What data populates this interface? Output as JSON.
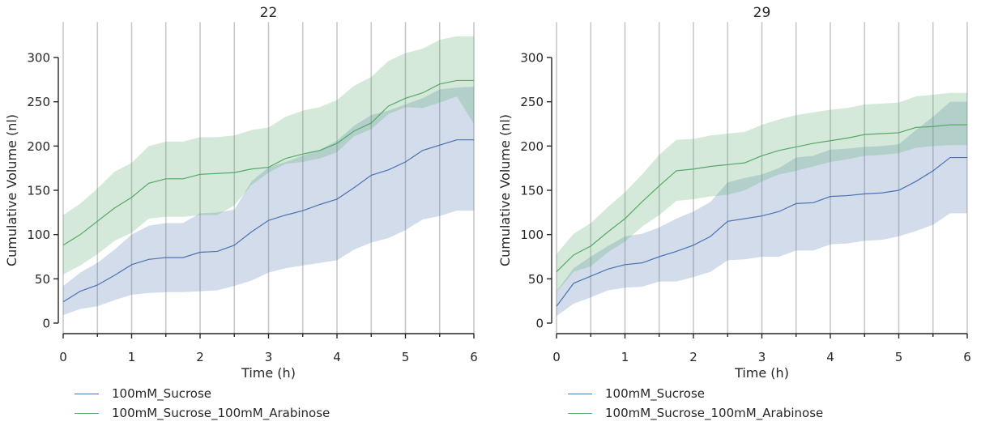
{
  "chart_data": [
    {
      "type": "line",
      "title": "22",
      "xlabel": "Time (h)",
      "ylabel": "Cumulative Volume (nl)",
      "xlim": [
        0,
        6
      ],
      "ylim": [
        -12,
        340
      ],
      "xticks": [
        0,
        1,
        2,
        3,
        4,
        5,
        6
      ],
      "xtick_labels": [
        "0",
        "1",
        "2",
        "3",
        "4",
        "5",
        "6"
      ],
      "yticks": [
        0,
        50,
        100,
        150,
        200,
        250,
        300
      ],
      "ytick_labels": [
        "0",
        "50",
        "100",
        "150",
        "200",
        "250",
        "300"
      ],
      "vertical_gridlines": [
        0,
        0.5,
        1,
        1.5,
        2,
        2.5,
        3,
        3.5,
        4,
        4.5,
        5,
        5.5,
        6
      ],
      "legend_position": "bottom-left",
      "x": [
        0,
        0.25,
        0.5,
        0.75,
        1,
        1.25,
        1.5,
        1.75,
        2,
        2.25,
        2.5,
        2.75,
        3,
        3.25,
        3.5,
        3.75,
        4,
        4.25,
        4.5,
        4.75,
        5,
        5.25,
        5.5,
        5.75,
        6
      ],
      "series": [
        {
          "name": "100mM_Sucrose",
          "color": "#4c72b0",
          "values": [
            24,
            36,
            43,
            54,
            66,
            72,
            74,
            74,
            80,
            81,
            88,
            103,
            116,
            122,
            127,
            134,
            140,
            153,
            167,
            173,
            182,
            195,
            201,
            207,
            207
          ],
          "lower": [
            9,
            16,
            19,
            26,
            32,
            34,
            35,
            35,
            36,
            37,
            42,
            48,
            57,
            62,
            65,
            68,
            71,
            83,
            91,
            96,
            105,
            117,
            121,
            127,
            127
          ],
          "upper": [
            42,
            57,
            68,
            83,
            100,
            110,
            113,
            113,
            124,
            125,
            128,
            160,
            176,
            182,
            189,
            196,
            206,
            223,
            235,
            240,
            247,
            254,
            264,
            266,
            267
          ]
        },
        {
          "name": "100mM_Sucrose_100mM_Arabinose",
          "color": "#55a868",
          "values": [
            88,
            100,
            115,
            130,
            142,
            158,
            163,
            163,
            168,
            169,
            170,
            174,
            176,
            186,
            191,
            195,
            203,
            217,
            226,
            245,
            254,
            260,
            270,
            274,
            274
          ],
          "lower": [
            55,
            65,
            78,
            93,
            102,
            118,
            120,
            120,
            122,
            122,
            133,
            156,
            170,
            180,
            182,
            186,
            193,
            211,
            219,
            236,
            244,
            243,
            249,
            256,
            225
          ],
          "upper": [
            122,
            135,
            152,
            171,
            181,
            200,
            205,
            205,
            210,
            210,
            212,
            218,
            221,
            233,
            240,
            244,
            252,
            268,
            278,
            296,
            305,
            310,
            320,
            324,
            324
          ]
        }
      ]
    },
    {
      "type": "line",
      "title": "29",
      "xlabel": "Time (h)",
      "ylabel": "Cumulative Volume (nl)",
      "xlim": [
        0,
        6
      ],
      "ylim": [
        -12,
        340
      ],
      "xticks": [
        0,
        1,
        2,
        3,
        4,
        5,
        6
      ],
      "xtick_labels": [
        "0",
        "1",
        "2",
        "3",
        "4",
        "5",
        "6"
      ],
      "yticks": [
        0,
        50,
        100,
        150,
        200,
        250,
        300
      ],
      "ytick_labels": [
        "0",
        "50",
        "100",
        "150",
        "200",
        "250",
        "300"
      ],
      "vertical_gridlines": [
        0,
        0.5,
        1,
        1.5,
        2,
        2.5,
        3,
        3.5,
        4,
        4.5,
        5,
        5.5,
        6
      ],
      "legend_position": "bottom-left",
      "x": [
        0,
        0.25,
        0.5,
        0.75,
        1,
        1.25,
        1.5,
        1.75,
        2,
        2.25,
        2.5,
        2.75,
        3,
        3.25,
        3.5,
        3.75,
        4,
        4.25,
        4.5,
        4.75,
        5,
        5.25,
        5.5,
        5.75,
        6
      ],
      "series": [
        {
          "name": "100mM_Sucrose",
          "color": "#4c72b0",
          "values": [
            19,
            45,
            53,
            61,
            66,
            68,
            75,
            81,
            88,
            98,
            115,
            118,
            121,
            126,
            135,
            136,
            143,
            144,
            146,
            147,
            150,
            160,
            172,
            187,
            187
          ],
          "lower": [
            8,
            22,
            29,
            37,
            40,
            41,
            47,
            47,
            52,
            58,
            71,
            72,
            75,
            75,
            82,
            82,
            89,
            90,
            93,
            94,
            98,
            104,
            111,
            124,
            124
          ],
          "upper": [
            36,
            62,
            75,
            87,
            98,
            101,
            108,
            118,
            126,
            137,
            159,
            164,
            168,
            175,
            187,
            189,
            196,
            197,
            199,
            200,
            202,
            218,
            233,
            250,
            250
          ]
        },
        {
          "name": "100mM_Sucrose_100mM_Arabinose",
          "color": "#55a868",
          "values": [
            58,
            77,
            87,
            103,
            118,
            137,
            155,
            172,
            174,
            177,
            179,
            181,
            189,
            195,
            199,
            203,
            206,
            209,
            213,
            214,
            215,
            221,
            222,
            224,
            224
          ],
          "lower": [
            35,
            58,
            64,
            80,
            92,
            109,
            122,
            138,
            140,
            143,
            145,
            150,
            160,
            168,
            172,
            177,
            182,
            185,
            189,
            190,
            192,
            198,
            200,
            201,
            201
          ],
          "upper": [
            78,
            101,
            113,
            131,
            148,
            168,
            190,
            207,
            208,
            212,
            214,
            216,
            224,
            230,
            235,
            238,
            241,
            243,
            247,
            248,
            249,
            256,
            258,
            260,
            260
          ]
        }
      ]
    }
  ]
}
